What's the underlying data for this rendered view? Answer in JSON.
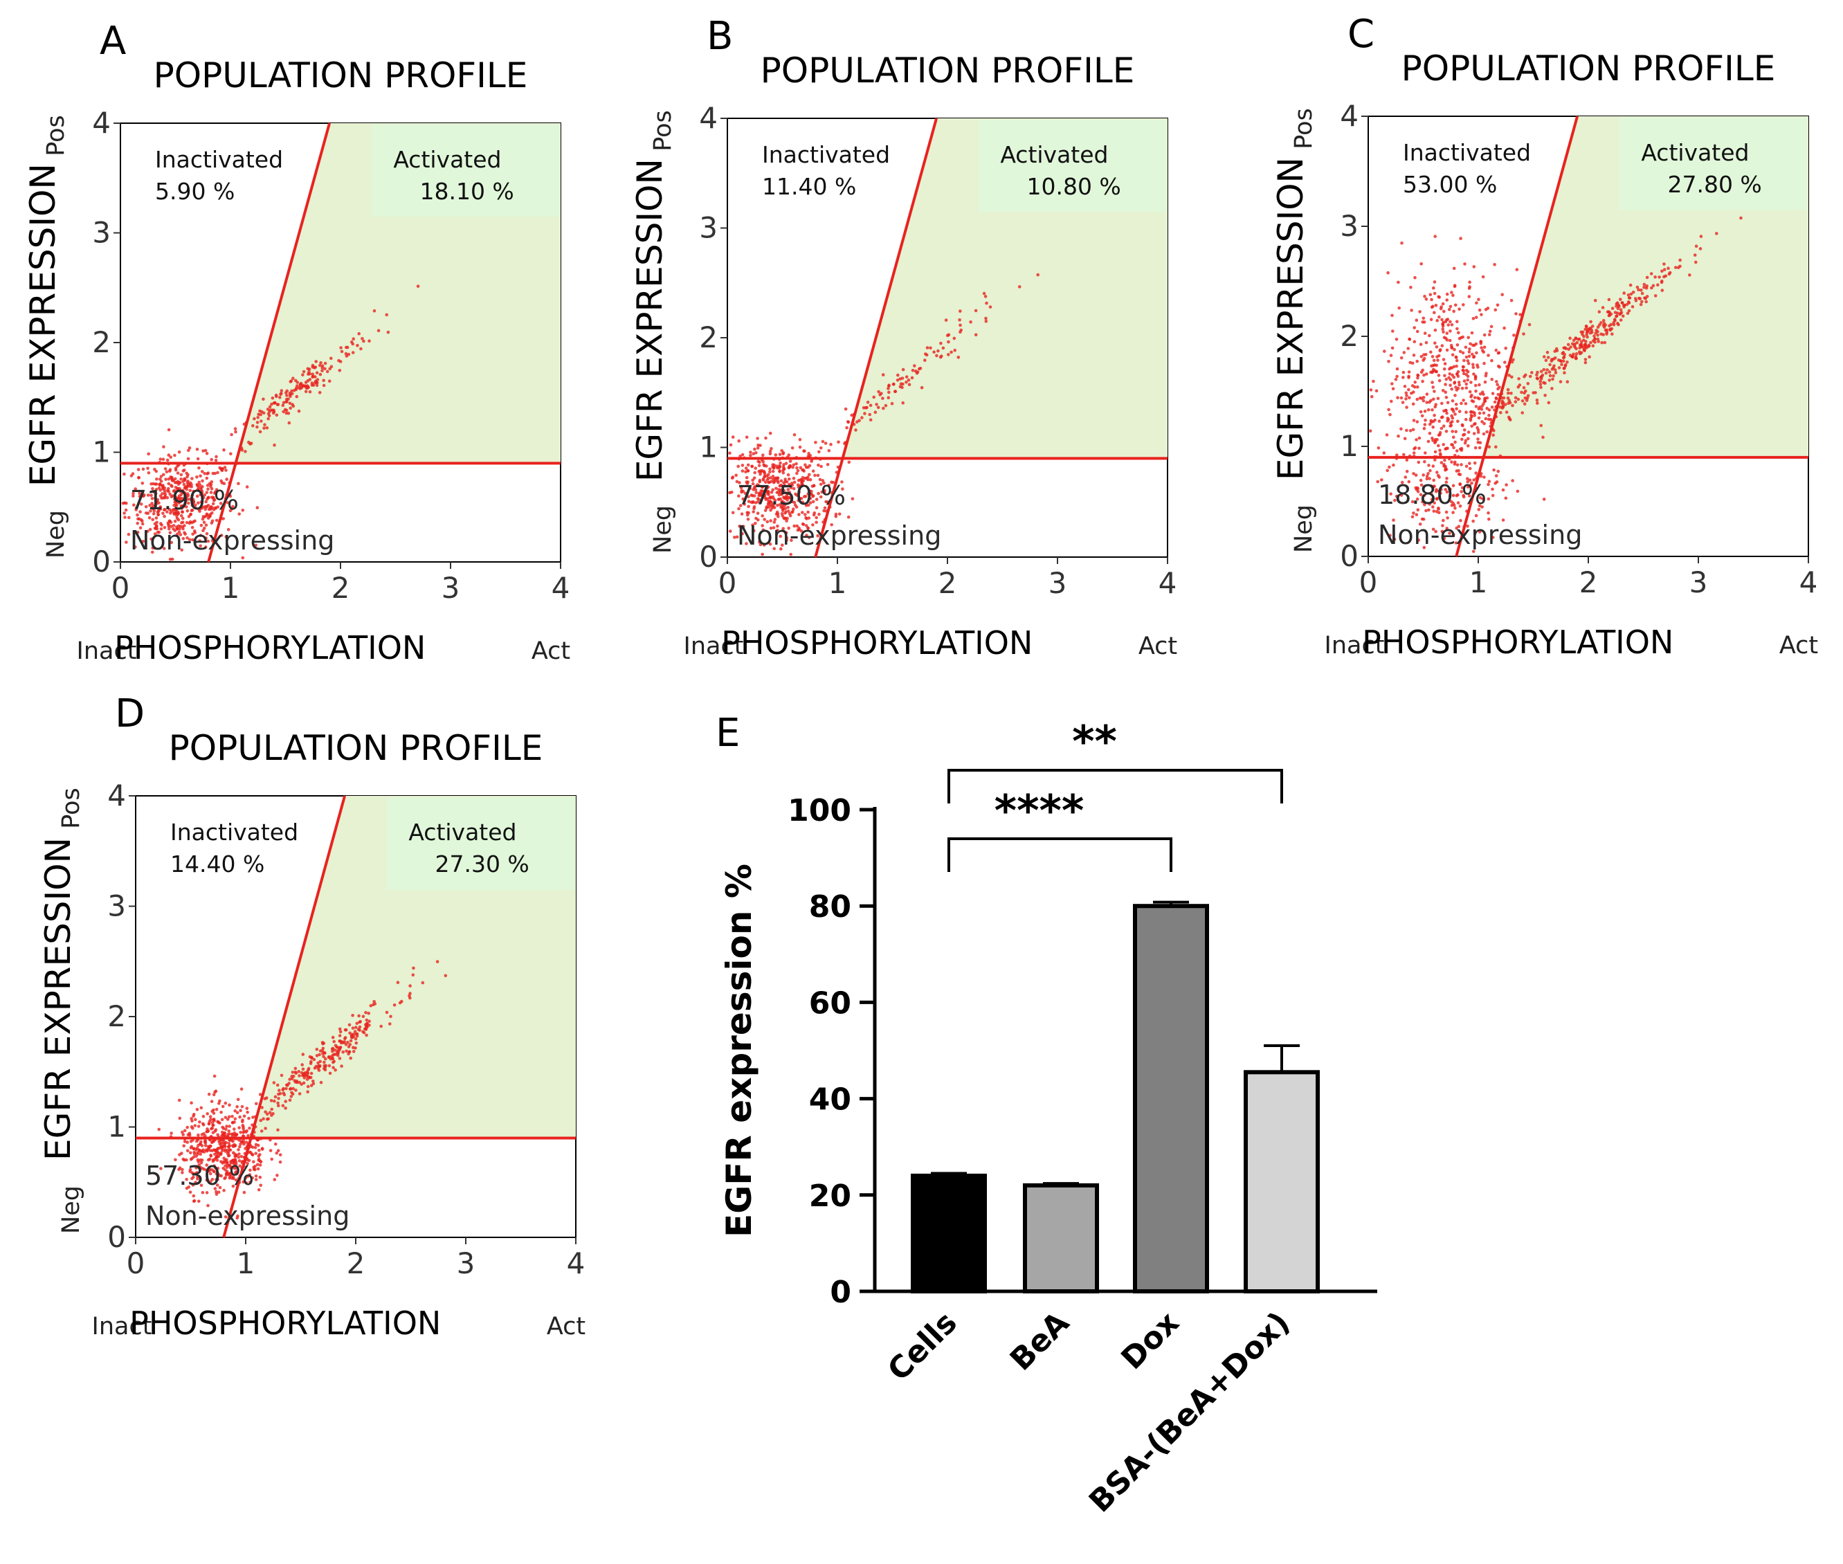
{
  "chart_data": [
    {
      "panel": "A",
      "type": "scatter",
      "title": "POPULATION PROFILE",
      "xlabel": "PHOSPHORYLATION",
      "ylabel": "EGFR EXPRESSION",
      "x_min_label": "Inact",
      "x_max_label": "Act",
      "y_min_label": "Neg",
      "y_max_label": "Pos",
      "xlim": [
        0,
        4
      ],
      "ylim": [
        0,
        4
      ],
      "x_ticks": [
        "0",
        "1",
        "2",
        "3",
        "4"
      ],
      "y_ticks": [
        "0",
        "1",
        "2",
        "3",
        "4"
      ],
      "threshold_y": 0.9,
      "gate_line": [
        [
          0.8,
          0
        ],
        [
          1.9,
          4
        ]
      ],
      "quadrants": {
        "inactivated": {
          "label": "Inactivated",
          "value": "5.90 %"
        },
        "activated": {
          "label": "Activated",
          "value": "18.10 %"
        },
        "non_expressing": {
          "label": "Non-expressing",
          "value": "71.90 %"
        }
      },
      "clusters": [
        {
          "cx": 0.55,
          "cy": 0.55,
          "sx": 0.25,
          "sy": 0.2,
          "n": 500
        },
        {
          "cx": 1.6,
          "cy": 1.55,
          "sx": 0.35,
          "sy": 0.3,
          "n": 180,
          "corr": true
        }
      ]
    },
    {
      "panel": "B",
      "type": "scatter",
      "title": "POPULATION PROFILE",
      "xlabel": "PHOSPHORYLATION",
      "ylabel": "EGFR EXPRESSION",
      "x_min_label": "Inact",
      "x_max_label": "Act",
      "y_min_label": "Neg",
      "y_max_label": "Pos",
      "xlim": [
        0,
        4
      ],
      "ylim": [
        0,
        4
      ],
      "x_ticks": [
        "0",
        "1",
        "2",
        "3",
        "4"
      ],
      "y_ticks": [
        "0",
        "1",
        "2",
        "3",
        "4"
      ],
      "threshold_y": 0.9,
      "gate_line": [
        [
          0.8,
          0
        ],
        [
          1.9,
          4
        ]
      ],
      "quadrants": {
        "inactivated": {
          "label": "Inactivated",
          "value": "11.40 %"
        },
        "activated": {
          "label": "Activated",
          "value": "10.80 %"
        },
        "non_expressing": {
          "label": "Non-expressing",
          "value": "77.50 %"
        }
      },
      "clusters": [
        {
          "cx": 0.45,
          "cy": 0.6,
          "sx": 0.25,
          "sy": 0.22,
          "n": 520
        },
        {
          "cx": 1.6,
          "cy": 1.6,
          "sx": 0.45,
          "sy": 0.4,
          "n": 110,
          "corr": true
        }
      ]
    },
    {
      "panel": "C",
      "type": "scatter",
      "title": "POPULATION PROFILE",
      "xlabel": "PHOSPHORYLATION",
      "ylabel": "EGFR EXPRESSION",
      "x_min_label": "Inact",
      "x_max_label": "Act",
      "y_min_label": "Neg",
      "y_max_label": "Pos",
      "xlim": [
        0,
        4
      ],
      "ylim": [
        0,
        4
      ],
      "x_ticks": [
        "0",
        "1",
        "2",
        "3",
        "4"
      ],
      "y_ticks": [
        "0",
        "1",
        "2",
        "3",
        "4"
      ],
      "threshold_y": 0.9,
      "gate_line": [
        [
          0.8,
          0
        ],
        [
          1.9,
          4
        ]
      ],
      "quadrants": {
        "inactivated": {
          "label": "Inactivated",
          "value": "53.00 %"
        },
        "activated": {
          "label": "Activated",
          "value": "27.80 %"
        },
        "non_expressing": {
          "label": "Non-expressing",
          "value": "18.80 %"
        }
      },
      "clusters": [
        {
          "cx": 0.75,
          "cy": 1.6,
          "sx": 0.3,
          "sy": 0.5,
          "n": 560
        },
        {
          "cx": 0.7,
          "cy": 0.6,
          "sx": 0.25,
          "sy": 0.25,
          "n": 180
        },
        {
          "cx": 1.9,
          "cy": 1.9,
          "sx": 0.45,
          "sy": 0.4,
          "n": 320,
          "corr": true
        }
      ]
    },
    {
      "panel": "D",
      "type": "scatter",
      "title": "POPULATION PROFILE",
      "xlabel": "PHOSPHORYLATION",
      "ylabel": "EGFR EXPRESSION",
      "x_min_label": "Inact",
      "x_max_label": "Act",
      "y_min_label": "Neg",
      "y_max_label": "Pos",
      "xlim": [
        0,
        4
      ],
      "ylim": [
        0,
        4
      ],
      "x_ticks": [
        "0",
        "1",
        "2",
        "3",
        "4"
      ],
      "y_ticks": [
        "0",
        "1",
        "2",
        "3",
        "4"
      ],
      "threshold_y": 0.9,
      "gate_line": [
        [
          0.8,
          0
        ],
        [
          1.9,
          4
        ]
      ],
      "quadrants": {
        "inactivated": {
          "label": "Inactivated",
          "value": "14.40 %"
        },
        "activated": {
          "label": "Activated",
          "value": "27.30 %"
        },
        "non_expressing": {
          "label": "Non-expressing",
          "value": "57.30 %"
        }
      },
      "clusters": [
        {
          "cx": 0.8,
          "cy": 0.8,
          "sx": 0.2,
          "sy": 0.2,
          "n": 520
        },
        {
          "cx": 1.7,
          "cy": 1.6,
          "sx": 0.35,
          "sy": 0.3,
          "n": 260,
          "corr": true
        }
      ]
    },
    {
      "panel": "E",
      "type": "bar",
      "categories": [
        "Cells",
        "BeA",
        "Dox",
        "BSA-(BeA+Dox)"
      ],
      "values": [
        24,
        22,
        80,
        45.5
      ],
      "errors": [
        0.5,
        0.4,
        0.8,
        5.5
      ],
      "colors": [
        "#000000",
        "#a6a6a6",
        "#808080",
        "#d4d4d4"
      ],
      "xlabel": "",
      "ylabel": "EGFR expression %",
      "ylim": [
        0,
        100
      ],
      "y_ticks": [
        "0",
        "20",
        "40",
        "60",
        "80",
        "100"
      ],
      "significance": [
        {
          "from": "Cells",
          "to": "Dox",
          "label": "****"
        },
        {
          "from": "Cells",
          "to": "BSA-(BeA+Dox)",
          "label": "**"
        }
      ]
    }
  ]
}
